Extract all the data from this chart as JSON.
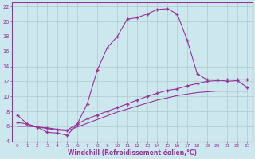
{
  "xlabel": "Windchill (Refroidissement éolien,°C)",
  "background_color": "#cce8ee",
  "grid_color": "#aacccc",
  "line_color": "#993399",
  "xlim": [
    -0.5,
    23.5
  ],
  "ylim": [
    4,
    22.5
  ],
  "xticks": [
    0,
    1,
    2,
    3,
    4,
    5,
    6,
    7,
    8,
    9,
    10,
    11,
    12,
    13,
    14,
    15,
    16,
    17,
    18,
    19,
    20,
    21,
    22,
    23
  ],
  "yticks": [
    4,
    6,
    8,
    10,
    12,
    14,
    16,
    18,
    20,
    22
  ],
  "series1_x": [
    0,
    1,
    2,
    3,
    4,
    5,
    6,
    7,
    8,
    9,
    10,
    11,
    12,
    13,
    14,
    15,
    16,
    17,
    18,
    19,
    20,
    21,
    22,
    23
  ],
  "series1_y": [
    7.5,
    6.3,
    5.9,
    5.2,
    5.1,
    4.8,
    6.3,
    9.0,
    13.5,
    16.5,
    18.0,
    20.3,
    20.5,
    21.0,
    21.6,
    21.7,
    21.0,
    17.5,
    13.0,
    12.2,
    12.2,
    12.0,
    12.1,
    11.2
  ],
  "series2_x": [
    0,
    1,
    2,
    3,
    4,
    5,
    6,
    7,
    8,
    9,
    10,
    11,
    12,
    13,
    14,
    15,
    16,
    17,
    18,
    19,
    20,
    21,
    22,
    23
  ],
  "series2_y": [
    6.5,
    6.3,
    5.9,
    5.8,
    5.6,
    5.5,
    6.3,
    7.0,
    7.5,
    8.0,
    8.5,
    9.0,
    9.5,
    10.0,
    10.4,
    10.8,
    11.0,
    11.4,
    11.7,
    12.0,
    12.1,
    12.2,
    12.2,
    12.2
  ],
  "series3_x": [
    0,
    1,
    2,
    3,
    4,
    5,
    6,
    7,
    8,
    9,
    10,
    11,
    12,
    13,
    14,
    15,
    16,
    17,
    18,
    19,
    20,
    21,
    22,
    23
  ],
  "series3_y": [
    6.0,
    6.0,
    5.9,
    5.7,
    5.5,
    5.4,
    5.9,
    6.4,
    6.9,
    7.4,
    7.9,
    8.3,
    8.7,
    9.1,
    9.5,
    9.8,
    10.1,
    10.3,
    10.5,
    10.6,
    10.7,
    10.7,
    10.7,
    10.7
  ]
}
